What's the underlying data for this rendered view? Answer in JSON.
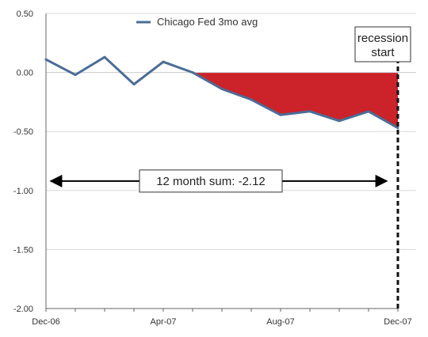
{
  "chart_data": {
    "type": "line",
    "title": "",
    "xlabel": "",
    "ylabel": "",
    "ylim": [
      -2.0,
      0.5
    ],
    "yticks": [
      0.5,
      0.0,
      -0.5,
      -1.0,
      -1.5,
      -2.0
    ],
    "ytick_labels": [
      "0.50",
      "0.00",
      "-0.50",
      "-1.00",
      "-1.50",
      "-2.00"
    ],
    "xticks": [
      {
        "index": 0,
        "label": "Dec-06"
      },
      {
        "index": 4,
        "label": "Apr-07"
      },
      {
        "index": 8,
        "label": "Aug-07"
      },
      {
        "index": 12,
        "label": "Dec-07"
      }
    ],
    "grid": true,
    "legend_position": "top-center",
    "x": [
      "Dec-06",
      "Jan-07",
      "Feb-07",
      "Mar-07",
      "Apr-07",
      "May-07",
      "Jun-07",
      "Jul-07",
      "Aug-07",
      "Sep-07",
      "Oct-07",
      "Nov-07",
      "Dec-07"
    ],
    "series": [
      {
        "name": "Chicago Fed 3mo avg",
        "color": "#4a6d96",
        "values": [
          0.11,
          -0.02,
          0.13,
          -0.1,
          0.09,
          0.0,
          -0.14,
          -0.23,
          -0.36,
          -0.33,
          -0.41,
          -0.33,
          -0.47
        ]
      }
    ],
    "fill": {
      "color": "#cc2229",
      "from_index": 5,
      "to_index": 12,
      "baseline": 0
    },
    "annotations": {
      "recession_label": [
        "recession",
        "start"
      ],
      "recession_index": 12,
      "sum_label": "12 month sum:   -2.12",
      "sum_y": -0.92
    }
  }
}
